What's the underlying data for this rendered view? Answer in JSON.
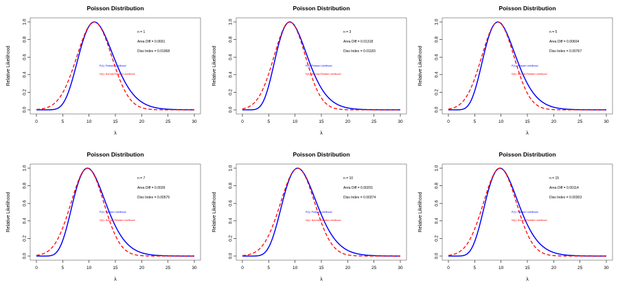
{
  "colors": {
    "poisson": "#0000ff",
    "normal": "#ff0000",
    "axis": "#000000",
    "box": "#555555"
  },
  "chart_data": [
    {
      "type": "line",
      "title": "Poisson Distribution",
      "xlabel": "λ",
      "ylabel": "Relative Likelihood",
      "xlim": [
        0,
        30
      ],
      "ylim": [
        0,
        1
      ],
      "xticks": [
        "0",
        "5",
        "10",
        "15",
        "20",
        "25",
        "30"
      ],
      "yticks": [
        "0.0",
        "0.2",
        "0.4",
        "0.6",
        "0.8",
        "1.0"
      ],
      "grid": false,
      "n_label": "n = 1",
      "area_label": "Area Diff = 0.0691",
      "diss_label": "Diss Index = 0.01968",
      "legend": [
        "P(λ): Poisson Likelihood",
        "N(λ): Normal Relative Likelihood"
      ],
      "legend_placement": "center-right",
      "n": 1,
      "k": 11,
      "series": [
        {
          "name": "P(λ): Poisson Likelihood",
          "style": "solid",
          "color": "#0000ff",
          "x_range": [
            0,
            30
          ]
        },
        {
          "name": "N(λ): Normal Relative Likelihood",
          "style": "dashed",
          "color": "#ff0000",
          "x_range": [
            0,
            30
          ]
        }
      ]
    },
    {
      "type": "line",
      "title": "Poisson Distribution",
      "xlabel": "λ",
      "ylabel": "Relative Likelihood",
      "xlim": [
        0,
        30
      ],
      "ylim": [
        0,
        1
      ],
      "xticks": [
        "0",
        "5",
        "10",
        "15",
        "20",
        "25",
        "30"
      ],
      "yticks": [
        "0.0",
        "0.2",
        "0.4",
        "0.6",
        "0.8",
        "1.0"
      ],
      "grid": false,
      "n_label": "n = 3",
      "area_label": "Area Diff = 0.01318",
      "diss_label": "Diss Index = 0.01183",
      "legend": [
        "P(λ): Poisson Likelihood",
        "N(λ): Normal Relative Likelihood"
      ],
      "legend_placement": "center-right",
      "n": 3,
      "k": 9,
      "series": [
        {
          "name": "P(λ): Poisson Likelihood",
          "style": "solid",
          "color": "#0000ff",
          "x_range": [
            0,
            30
          ]
        },
        {
          "name": "N(λ): Normal Relative Likelihood",
          "style": "dashed",
          "color": "#ff0000",
          "x_range": [
            0,
            30
          ]
        }
      ]
    },
    {
      "type": "line",
      "title": "Poisson Distribution",
      "xlabel": "λ",
      "ylabel": "Relative Likelihood",
      "xlim": [
        0,
        30
      ],
      "ylim": [
        0,
        1
      ],
      "xticks": [
        "0",
        "5",
        "10",
        "15",
        "20",
        "25",
        "30"
      ],
      "yticks": [
        "0.0",
        "0.2",
        "0.4",
        "0.6",
        "0.8",
        "1.0"
      ],
      "grid": false,
      "n_label": "n = 5",
      "area_label": "Area Diff = 0.00604",
      "diss_label": "Diss Index = 0.00767",
      "legend": [
        "P(λ): Poisson Likelihood",
        "N(λ): Normal Relative Likelihood"
      ],
      "legend_placement": "center-right",
      "n": 5,
      "k": 9.4,
      "series": [
        {
          "name": "P(λ): Poisson Likelihood",
          "style": "solid",
          "color": "#0000ff",
          "x_range": [
            0,
            30
          ]
        },
        {
          "name": "N(λ): Normal Relative Likelihood",
          "style": "dashed",
          "color": "#ff0000",
          "x_range": [
            0,
            30
          ]
        }
      ]
    },
    {
      "type": "line",
      "title": "Poisson Distribution",
      "xlabel": "λ",
      "ylabel": "Relative Likelihood",
      "xlim": [
        0,
        30
      ],
      "ylim": [
        0,
        1
      ],
      "xticks": [
        "0",
        "5",
        "10",
        "15",
        "20",
        "25",
        "30"
      ],
      "yticks": [
        "0.0",
        "0.2",
        "0.4",
        "0.6",
        "0.8",
        "1.0"
      ],
      "grid": false,
      "n_label": "n = 7",
      "area_label": "Area Diff = 0.0039",
      "diss_label": "Diss Index = 0.00575",
      "legend": [
        "P(λ): Poisson Likelihood",
        "N(λ): Normal Relative Likelihood"
      ],
      "legend_placement": "center-right",
      "n": 7,
      "k": 9.7,
      "series": [
        {
          "name": "P(λ): Poisson Likelihood",
          "style": "solid",
          "color": "#0000ff",
          "x_range": [
            0,
            30
          ]
        },
        {
          "name": "N(λ): Normal Relative Likelihood",
          "style": "dashed",
          "color": "#ff0000",
          "x_range": [
            0,
            30
          ]
        }
      ]
    },
    {
      "type": "line",
      "title": "Poisson Distribution",
      "xlabel": "λ",
      "ylabel": "Relative Likelihood",
      "xlim": [
        0,
        30
      ],
      "ylim": [
        0,
        1
      ],
      "xticks": [
        "0",
        "5",
        "10",
        "15",
        "20",
        "25",
        "30"
      ],
      "yticks": [
        "0.0",
        "0.2",
        "0.4",
        "0.6",
        "0.8",
        "1.0"
      ],
      "grid": false,
      "n_label": "n = 10",
      "area_label": "Area Diff = 0.00201",
      "diss_label": "Diss Index = 0.00374",
      "legend": [
        "P(λ): Poisson Likelihood",
        "N(λ): Normal Relative Likelihood"
      ],
      "legend_placement": "center-right",
      "n": 10,
      "k": 10.5,
      "series": [
        {
          "name": "P(λ): Poisson Likelihood",
          "style": "solid",
          "color": "#0000ff",
          "x_range": [
            0,
            30
          ]
        },
        {
          "name": "N(λ): Normal Relative Likelihood",
          "style": "dashed",
          "color": "#ff0000",
          "x_range": [
            0,
            30
          ]
        }
      ]
    },
    {
      "type": "line",
      "title": "Poisson Distribution",
      "xlabel": "λ",
      "ylabel": "Relative Likelihood",
      "xlim": [
        0,
        30
      ],
      "ylim": [
        0,
        1
      ],
      "xticks": [
        "0",
        "5",
        "10",
        "15",
        "20",
        "25",
        "30"
      ],
      "yticks": [
        "0.0",
        "0.2",
        "0.4",
        "0.6",
        "0.8",
        "1.0"
      ],
      "grid": false,
      "n_label": "n = 15",
      "area_label": "Area Diff = 0.00114",
      "diss_label": "Diss Index = 0.00303",
      "legend": [
        "P(λ): Poisson Likelihood",
        "N(λ): Normal Relative Likelihood"
      ],
      "legend_placement": "center-right",
      "n": 15,
      "k": 9.8,
      "series": [
        {
          "name": "P(λ): Poisson Likelihood",
          "style": "solid",
          "color": "#0000ff",
          "x_range": [
            0,
            30
          ]
        },
        {
          "name": "N(λ): Normal Relative Likelihood",
          "style": "dashed",
          "color": "#ff0000",
          "x_range": [
            0,
            30
          ]
        }
      ]
    }
  ]
}
